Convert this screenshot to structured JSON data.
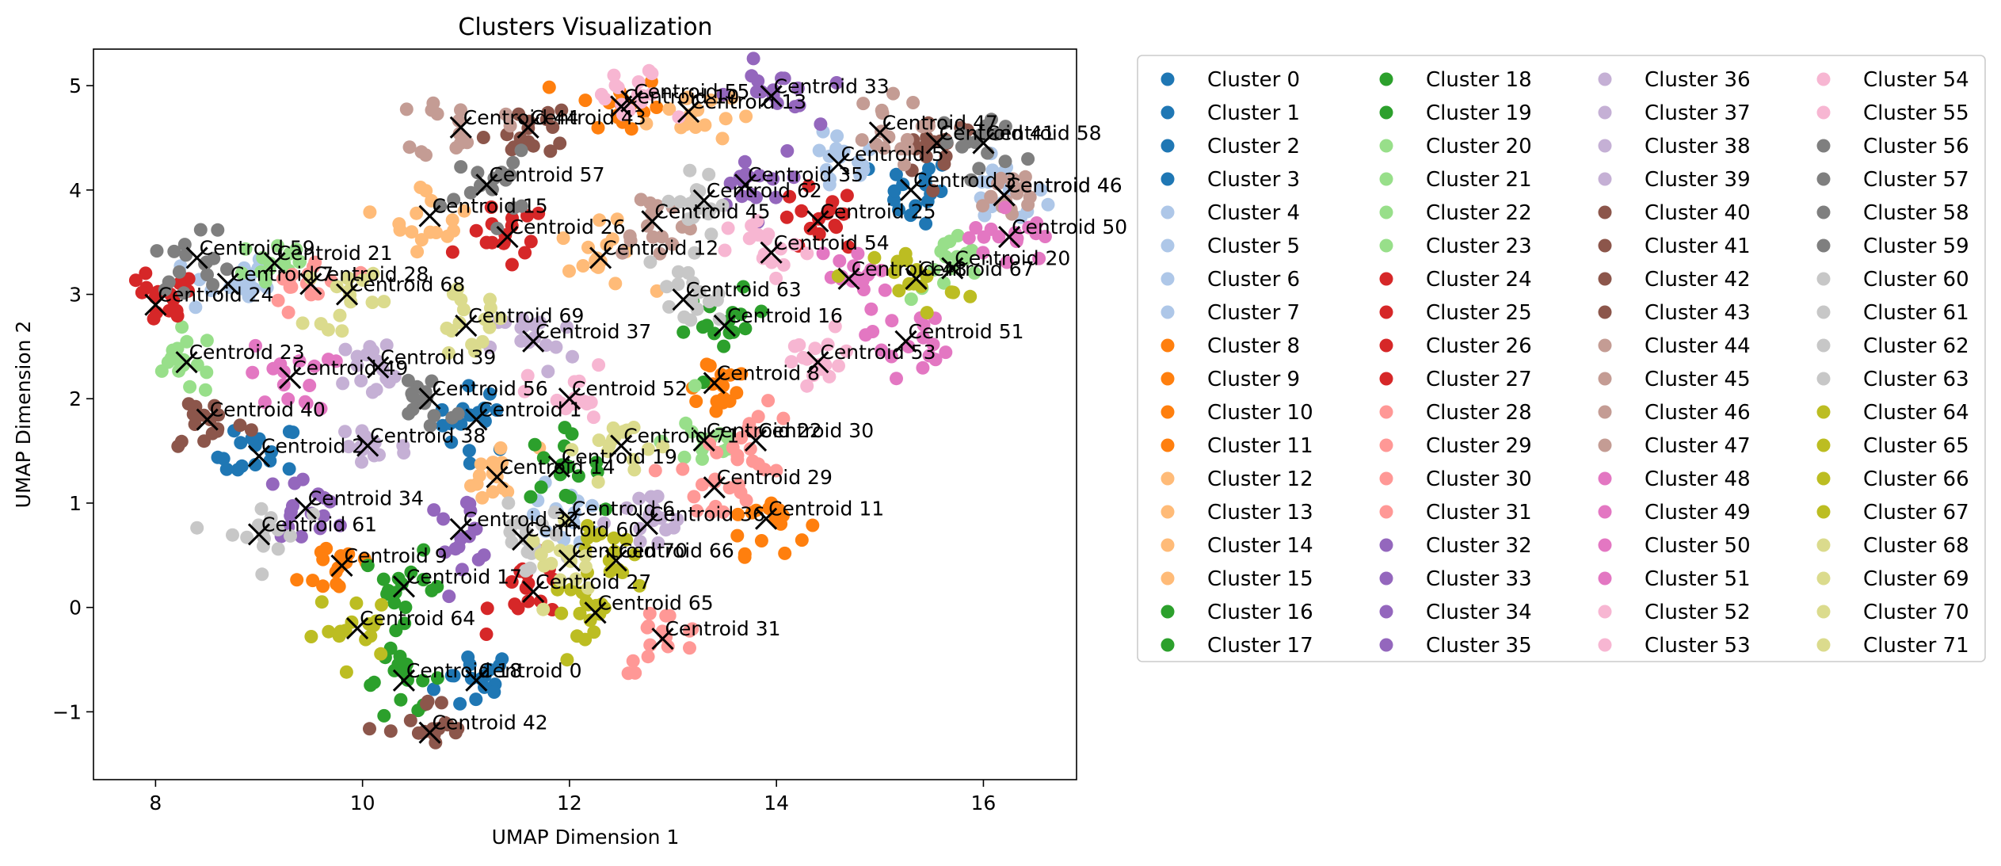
{
  "chart_data": {
    "type": "scatter",
    "title": "Clusters Visualization",
    "xlabel": "UMAP Dimension 1",
    "ylabel": "UMAP Dimension 2",
    "xlim": [
      7.4,
      16.9
    ],
    "ylim": [
      -1.65,
      5.35
    ],
    "xticks": [
      8,
      10,
      12,
      14,
      16
    ],
    "yticks": [
      -1,
      0,
      1,
      2,
      3,
      4,
      5
    ],
    "grid": false,
    "legend_position": "outside-right",
    "legend_columns": 4,
    "palette": [
      "#1f77b4",
      "#aec7e8",
      "#ff7f0e",
      "#ffbb78",
      "#2ca02c",
      "#98df8a",
      "#d62728",
      "#ff9896",
      "#9467bd",
      "#c5b0d5",
      "#8c564b",
      "#c49c94",
      "#e377c2",
      "#f7b6d2",
      "#7f7f7f",
      "#c7c7c7",
      "#bcbd22",
      "#dbdb8d",
      "#17becf",
      "#9edae5"
    ],
    "clusters_per_color": 4,
    "centroid_marker": "x",
    "centroid_color": "#000000",
    "series": [
      {
        "name": "Cluster 0",
        "centroid": [
          11.1,
          -0.7
        ]
      },
      {
        "name": "Cluster 1",
        "centroid": [
          11.1,
          1.8
        ]
      },
      {
        "name": "Cluster 2",
        "centroid": [
          9.0,
          1.45
        ]
      },
      {
        "name": "Cluster 3",
        "centroid": [
          15.3,
          4.0
        ]
      },
      {
        "name": "Cluster 4",
        "centroid": [
          16.2,
          3.95
        ]
      },
      {
        "name": "Cluster 5",
        "centroid": [
          14.6,
          4.25
        ]
      },
      {
        "name": "Cluster 6",
        "centroid": [
          12.0,
          0.85
        ]
      },
      {
        "name": "Cluster 7",
        "centroid": [
          8.7,
          3.1
        ]
      },
      {
        "name": "Cluster 8",
        "centroid": [
          13.4,
          2.15
        ]
      },
      {
        "name": "Cluster 9",
        "centroid": [
          9.8,
          0.4
        ]
      },
      {
        "name": "Cluster 10",
        "centroid": [
          12.5,
          4.8
        ]
      },
      {
        "name": "Cluster 11",
        "centroid": [
          13.9,
          0.85
        ]
      },
      {
        "name": "Cluster 12",
        "centroid": [
          12.3,
          3.35
        ]
      },
      {
        "name": "Cluster 13",
        "centroid": [
          13.15,
          4.75
        ]
      },
      {
        "name": "Cluster 14",
        "centroid": [
          11.3,
          1.25
        ]
      },
      {
        "name": "Cluster 15",
        "centroid": [
          10.65,
          3.75
        ]
      },
      {
        "name": "Cluster 16",
        "centroid": [
          13.5,
          2.7
        ]
      },
      {
        "name": "Cluster 17",
        "centroid": [
          10.4,
          0.2
        ]
      },
      {
        "name": "Cluster 18",
        "centroid": [
          10.4,
          -0.7
        ]
      },
      {
        "name": "Cluster 19",
        "centroid": [
          11.9,
          1.35
        ]
      },
      {
        "name": "Cluster 20",
        "centroid": [
          15.7,
          3.25
        ]
      },
      {
        "name": "Cluster 21",
        "centroid": [
          9.15,
          3.3
        ]
      },
      {
        "name": "Cluster 22",
        "centroid": [
          13.3,
          1.6
        ]
      },
      {
        "name": "Cluster 23",
        "centroid": [
          8.3,
          2.35
        ]
      },
      {
        "name": "Cluster 24",
        "centroid": [
          8.0,
          2.9
        ]
      },
      {
        "name": "Cluster 25",
        "centroid": [
          14.4,
          3.7
        ]
      },
      {
        "name": "Cluster 26",
        "centroid": [
          11.4,
          3.55
        ]
      },
      {
        "name": "Cluster 27",
        "centroid": [
          11.65,
          0.15
        ]
      },
      {
        "name": "Cluster 28",
        "centroid": [
          9.5,
          3.1
        ]
      },
      {
        "name": "Cluster 29",
        "centroid": [
          13.4,
          1.15
        ]
      },
      {
        "name": "Cluster 30",
        "centroid": [
          13.8,
          1.6
        ]
      },
      {
        "name": "Cluster 31",
        "centroid": [
          12.9,
          -0.3
        ]
      },
      {
        "name": "Cluster 32",
        "centroid": [
          10.95,
          0.75
        ]
      },
      {
        "name": "Cluster 33",
        "centroid": [
          13.95,
          4.9
        ]
      },
      {
        "name": "Cluster 34",
        "centroid": [
          9.45,
          0.95
        ]
      },
      {
        "name": "Cluster 35",
        "centroid": [
          13.7,
          4.05
        ]
      },
      {
        "name": "Cluster 36",
        "centroid": [
          12.75,
          0.8
        ]
      },
      {
        "name": "Cluster 37",
        "centroid": [
          11.65,
          2.55
        ]
      },
      {
        "name": "Cluster 38",
        "centroid": [
          10.05,
          1.55
        ]
      },
      {
        "name": "Cluster 39",
        "centroid": [
          10.15,
          2.3
        ]
      },
      {
        "name": "Cluster 40",
        "centroid": [
          8.5,
          1.8
        ]
      },
      {
        "name": "Cluster 41",
        "centroid": [
          15.55,
          4.45
        ]
      },
      {
        "name": "Cluster 42",
        "centroid": [
          10.65,
          -1.2
        ]
      },
      {
        "name": "Cluster 43",
        "centroid": [
          11.6,
          4.6
        ]
      },
      {
        "name": "Cluster 44",
        "centroid": [
          10.95,
          4.6
        ]
      },
      {
        "name": "Cluster 45",
        "centroid": [
          12.8,
          3.7
        ]
      },
      {
        "name": "Cluster 46",
        "centroid": [
          16.2,
          3.95
        ]
      },
      {
        "name": "Cluster 47",
        "centroid": [
          15.0,
          4.55
        ]
      },
      {
        "name": "Cluster 48",
        "centroid": [
          14.7,
          3.15
        ]
      },
      {
        "name": "Cluster 49",
        "centroid": [
          9.3,
          2.2
        ]
      },
      {
        "name": "Cluster 50",
        "centroid": [
          16.25,
          3.55
        ]
      },
      {
        "name": "Cluster 51",
        "centroid": [
          15.25,
          2.55
        ]
      },
      {
        "name": "Cluster 52",
        "centroid": [
          12.0,
          2.0
        ]
      },
      {
        "name": "Cluster 53",
        "centroid": [
          14.4,
          2.35
        ]
      },
      {
        "name": "Cluster 54",
        "centroid": [
          13.95,
          3.4
        ]
      },
      {
        "name": "Cluster 55",
        "centroid": [
          12.6,
          4.85
        ]
      },
      {
        "name": "Cluster 56",
        "centroid": [
          10.65,
          2.0
        ]
      },
      {
        "name": "Cluster 57",
        "centroid": [
          11.2,
          4.05
        ]
      },
      {
        "name": "Cluster 58",
        "centroid": [
          16.0,
          4.45
        ]
      },
      {
        "name": "Cluster 59",
        "centroid": [
          8.4,
          3.35
        ]
      },
      {
        "name": "Cluster 60",
        "centroid": [
          11.55,
          0.65
        ]
      },
      {
        "name": "Cluster 61",
        "centroid": [
          9.0,
          0.7
        ]
      },
      {
        "name": "Cluster 62",
        "centroid": [
          13.3,
          3.9
        ]
      },
      {
        "name": "Cluster 63",
        "centroid": [
          13.1,
          2.95
        ]
      },
      {
        "name": "Cluster 64",
        "centroid": [
          9.95,
          -0.2
        ]
      },
      {
        "name": "Cluster 65",
        "centroid": [
          12.25,
          -0.05
        ]
      },
      {
        "name": "Cluster 66",
        "centroid": [
          12.45,
          0.45
        ]
      },
      {
        "name": "Cluster 67",
        "centroid": [
          15.35,
          3.15
        ]
      },
      {
        "name": "Cluster 68",
        "centroid": [
          9.85,
          3.0
        ]
      },
      {
        "name": "Cluster 69",
        "centroid": [
          11.0,
          2.7
        ]
      },
      {
        "name": "Cluster 70",
        "centroid": [
          12.0,
          0.45
        ]
      },
      {
        "name": "Cluster 71",
        "centroid": [
          12.5,
          1.55
        ]
      }
    ],
    "centroid_labels": [
      "Centroid 0",
      "Centroid 1",
      "Centroid 2",
      "Centroid 3",
      "Centroid 4",
      "Centroid 5",
      "Centroid 6",
      "Centroid 7",
      "Centroid 8",
      "Centroid 9",
      "Centroid 10",
      "Centroid 11",
      "Centroid 12",
      "Centroid 13",
      "Centroid 14",
      "Centroid 15",
      "Centroid 16",
      "Centroid 17",
      "Centroid 18",
      "Centroid 19",
      "Centroid 20",
      "Centroid 21",
      "Centroid 22",
      "Centroid 23",
      "Centroid 24",
      "Centroid 25",
      "Centroid 26",
      "Centroid 27",
      "Centroid 28",
      "Centroid 29",
      "Centroid 30",
      "Centroid 31",
      "Centroid 32",
      "Centroid 33",
      "Centroid 34",
      "Centroid 35",
      "Centroid 36",
      "Centroid 37",
      "Centroid 38",
      "Centroid 39",
      "Centroid 40",
      "Centroid 41",
      "Centroid 42",
      "Centroid 43",
      "Centroid 44",
      "Centroid 45",
      "Centroid 46",
      "Centroid 47",
      "Centroid 48",
      "Centroid 49",
      "Centroid 50",
      "Centroid 51",
      "Centroid 52",
      "Centroid 53",
      "Centroid 54",
      "Centroid 55",
      "Centroid 56",
      "Centroid 57",
      "Centroid 58",
      "Centroid 59",
      "Centroid 60",
      "Centroid 61",
      "Centroid 62",
      "Centroid 63",
      "Centroid 64",
      "Centroid 65",
      "Centroid 66",
      "Centroid 67",
      "Centroid 68",
      "Centroid 69",
      "Centroid 70",
      "Centroid 71"
    ]
  }
}
